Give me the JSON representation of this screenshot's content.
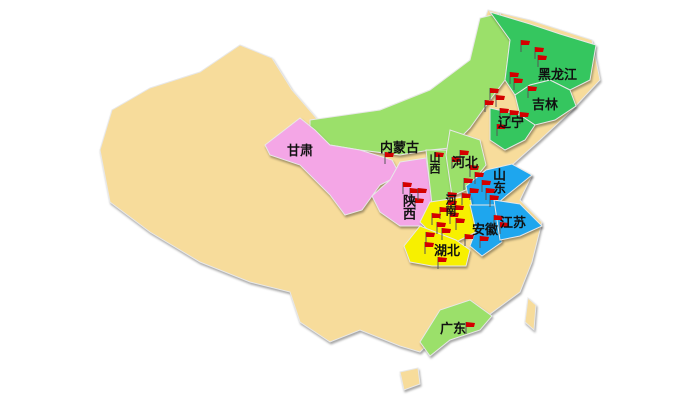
{
  "colors": {
    "base": "#F7DC9B",
    "light_green": "#9BE06A",
    "green": "#35C65F",
    "pink": "#F4A6E6",
    "yellow": "#F7F000",
    "blue": "#1EA6EE",
    "flag": "#D40000"
  },
  "provinces": {
    "heilongjiang": "黑龙江",
    "jilin": "吉林",
    "liaoning": "辽宁",
    "neimenggu": "内蒙古",
    "gansu": "甘肃",
    "hebei": "河北",
    "shanxi": "山西",
    "shandong": "山东",
    "shaanxi": "陕西",
    "henan": "河南",
    "jiangsu": "江苏",
    "anhui": "安徽",
    "hubei": "湖北",
    "guangdong": "广东"
  },
  "icons": {
    "marker": "red-flag-icon"
  }
}
